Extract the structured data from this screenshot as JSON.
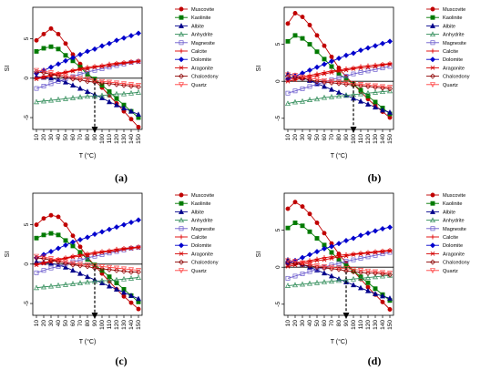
{
  "chart_data": [
    {
      "type": "line",
      "caption": "(a)",
      "xlabel": "T (°C)",
      "ylabel": "SI",
      "x": [
        10,
        20,
        30,
        40,
        50,
        60,
        70,
        80,
        90,
        100,
        110,
        120,
        130,
        140,
        150
      ],
      "xlim": [
        10,
        150
      ],
      "ylim": [
        -6.5,
        9
      ],
      "yticks": [
        -5,
        0,
        5
      ],
      "arrow_x": 90,
      "series": [
        {
          "name": "Muscovite",
          "values": [
            4.8,
            5.6,
            6.3,
            5.6,
            4.4,
            3.0,
            1.8,
            0.6,
            -0.3,
            -1.2,
            -2.2,
            -3.2,
            -4.2,
            -5.2,
            -6.2
          ]
        },
        {
          "name": "Kaolinite",
          "values": [
            3.4,
            3.8,
            4.0,
            3.7,
            2.9,
            2.2,
            1.4,
            0.5,
            -0.1,
            -0.9,
            -1.7,
            -2.6,
            -3.4,
            -4.2,
            -5.0
          ]
        },
        {
          "name": "Albite",
          "values": [
            0.2,
            0.1,
            0.0,
            -0.2,
            -0.5,
            -0.9,
            -1.3,
            -1.7,
            -2.1,
            -2.5,
            -3.0,
            -3.4,
            -3.8,
            -4.2,
            -4.6
          ]
        },
        {
          "name": "Anhydrite",
          "values": [
            -3.0,
            -2.9,
            -2.8,
            -2.7,
            -2.6,
            -2.5,
            -2.4,
            -2.3,
            -2.3,
            -2.2,
            -2.1,
            -2.0,
            -2.0,
            -1.9,
            -1.8
          ]
        },
        {
          "name": "Magnesite",
          "values": [
            -1.3,
            -1.0,
            -0.7,
            -0.4,
            -0.1,
            0.2,
            0.5,
            0.8,
            1.0,
            1.2,
            1.4,
            1.6,
            1.8,
            2.0,
            2.1
          ]
        },
        {
          "name": "Calcite",
          "values": [
            0.0,
            0.2,
            0.4,
            0.6,
            0.8,
            1.0,
            1.2,
            1.4,
            1.5,
            1.6,
            1.8,
            1.9,
            2.0,
            2.1,
            2.2
          ]
        },
        {
          "name": "Dolomite",
          "values": [
            0.6,
            1.0,
            1.4,
            1.8,
            2.2,
            2.6,
            3.0,
            3.4,
            3.7,
            4.1,
            4.4,
            4.8,
            5.1,
            5.4,
            5.7
          ]
        },
        {
          "name": "Aragonite",
          "values": [
            -0.1,
            0.1,
            0.3,
            0.5,
            0.7,
            0.9,
            1.1,
            1.2,
            1.4,
            1.5,
            1.6,
            1.8,
            1.9,
            2.0,
            2.1
          ]
        },
        {
          "name": "Chalcedony",
          "values": [
            0.8,
            0.7,
            0.5,
            0.3,
            0.1,
            -0.1,
            -0.2,
            -0.4,
            -0.5,
            -0.6,
            -0.7,
            -0.8,
            -0.9,
            -1.0,
            -1.1
          ]
        },
        {
          "name": "Quartz",
          "values": [
            1.0,
            0.9,
            0.7,
            0.5,
            0.3,
            0.1,
            0.0,
            -0.1,
            -0.3,
            -0.4,
            -0.5,
            -0.6,
            -0.7,
            -0.8,
            -0.9
          ]
        }
      ]
    },
    {
      "type": "line",
      "caption": "(b)",
      "xlabel": "T (°C)",
      "ylabel": "SI",
      "x": [
        10,
        20,
        30,
        40,
        50,
        60,
        70,
        80,
        90,
        100,
        110,
        120,
        130,
        140,
        150
      ],
      "xlim": [
        10,
        150
      ],
      "ylim": [
        -6.5,
        10
      ],
      "yticks": [
        -5,
        0,
        5
      ],
      "arrow_x": 100,
      "series": [
        {
          "name": "Muscovite",
          "values": [
            7.8,
            9.2,
            8.7,
            7.6,
            6.2,
            4.8,
            3.3,
            1.8,
            0.6,
            -0.4,
            -1.4,
            -2.4,
            -3.3,
            -4.1,
            -4.9
          ]
        },
        {
          "name": "Kaolinite",
          "values": [
            5.4,
            6.2,
            5.8,
            5.0,
            4.0,
            3.0,
            2.0,
            1.0,
            0.3,
            -0.4,
            -1.2,
            -2.0,
            -2.8,
            -3.6,
            -4.4
          ]
        },
        {
          "name": "Albite",
          "values": [
            1.0,
            0.8,
            0.5,
            0.1,
            -0.3,
            -0.7,
            -1.1,
            -1.5,
            -1.9,
            -2.3,
            -2.7,
            -3.1,
            -3.5,
            -3.9,
            -4.2
          ]
        },
        {
          "name": "Anhydrite",
          "values": [
            -3.0,
            -2.8,
            -2.7,
            -2.5,
            -2.4,
            -2.2,
            -2.1,
            -2.0,
            -1.9,
            -1.8,
            -1.7,
            -1.6,
            -1.5,
            -1.4,
            -1.3
          ]
        },
        {
          "name": "Magnesite",
          "values": [
            -1.6,
            -1.3,
            -1.0,
            -0.7,
            -0.4,
            -0.1,
            0.2,
            0.5,
            0.7,
            1.0,
            1.2,
            1.4,
            1.6,
            1.8,
            2.0
          ]
        },
        {
          "name": "Calcite",
          "values": [
            0.2,
            0.4,
            0.6,
            0.8,
            1.0,
            1.2,
            1.4,
            1.5,
            1.7,
            1.8,
            2.0,
            2.1,
            2.2,
            2.3,
            2.4
          ]
        },
        {
          "name": "Dolomite",
          "values": [
            0.3,
            0.7,
            1.1,
            1.5,
            1.9,
            2.3,
            2.7,
            3.1,
            3.5,
            3.8,
            4.2,
            4.5,
            4.8,
            5.1,
            5.4
          ]
        },
        {
          "name": "Aragonite",
          "values": [
            0.0,
            0.2,
            0.4,
            0.6,
            0.8,
            1.0,
            1.2,
            1.4,
            1.5,
            1.7,
            1.8,
            1.9,
            2.0,
            2.2,
            2.3
          ]
        },
        {
          "name": "Chalcedony",
          "values": [
            0.6,
            0.5,
            0.4,
            0.2,
            0.0,
            -0.1,
            -0.2,
            -0.3,
            -0.4,
            -0.5,
            -0.6,
            -0.7,
            -0.8,
            -0.9,
            -1.0
          ]
        },
        {
          "name": "Quartz",
          "values": [
            0.9,
            0.8,
            0.6,
            0.4,
            0.3,
            0.1,
            0.0,
            -0.1,
            -0.2,
            -0.3,
            -0.4,
            -0.5,
            -0.6,
            -0.7,
            -0.8
          ]
        }
      ]
    },
    {
      "type": "line",
      "caption": "(c)",
      "xlabel": "T (°C)",
      "ylabel": "SI",
      "x": [
        10,
        20,
        30,
        40,
        50,
        60,
        70,
        80,
        90,
        100,
        110,
        120,
        130,
        140,
        150
      ],
      "xlim": [
        10,
        150
      ],
      "ylim": [
        -6.5,
        9
      ],
      "yticks": [
        -5,
        0,
        5
      ],
      "arrow_x": 90,
      "series": [
        {
          "name": "Muscovite",
          "values": [
            5.0,
            5.8,
            6.2,
            6.0,
            5.0,
            3.6,
            2.2,
            0.9,
            -0.2,
            -1.2,
            -2.2,
            -3.2,
            -4.1,
            -4.9,
            -5.7
          ]
        },
        {
          "name": "Kaolinite",
          "values": [
            3.3,
            3.7,
            3.9,
            3.7,
            3.0,
            2.3,
            1.5,
            0.6,
            -0.1,
            -0.8,
            -1.6,
            -2.4,
            -3.2,
            -4.0,
            -4.8
          ]
        },
        {
          "name": "Albite",
          "values": [
            0.3,
            0.2,
            0.1,
            -0.1,
            -0.4,
            -0.8,
            -1.2,
            -1.6,
            -2.0,
            -2.4,
            -2.8,
            -3.2,
            -3.6,
            -4.0,
            -4.4
          ]
        },
        {
          "name": "Anhydrite",
          "values": [
            -3.0,
            -2.9,
            -2.8,
            -2.7,
            -2.6,
            -2.5,
            -2.4,
            -2.3,
            -2.2,
            -2.1,
            -2.1,
            -2.0,
            -1.9,
            -1.8,
            -1.7
          ]
        },
        {
          "name": "Magnesite",
          "values": [
            -1.1,
            -0.8,
            -0.5,
            -0.3,
            0.0,
            0.3,
            0.5,
            0.8,
            1.0,
            1.2,
            1.4,
            1.6,
            1.8,
            2.0,
            2.1
          ]
        },
        {
          "name": "Calcite",
          "values": [
            0.0,
            0.2,
            0.4,
            0.6,
            0.8,
            1.0,
            1.2,
            1.3,
            1.5,
            1.6,
            1.7,
            1.9,
            2.0,
            2.1,
            2.2
          ]
        },
        {
          "name": "Dolomite",
          "values": [
            0.8,
            1.2,
            1.6,
            2.0,
            2.4,
            2.8,
            3.1,
            3.4,
            3.8,
            4.1,
            4.4,
            4.7,
            5.0,
            5.3,
            5.6
          ]
        },
        {
          "name": "Aragonite",
          "values": [
            -0.1,
            0.1,
            0.3,
            0.5,
            0.7,
            0.9,
            1.0,
            1.2,
            1.3,
            1.5,
            1.6,
            1.7,
            1.9,
            2.0,
            2.1
          ]
        },
        {
          "name": "Chalcedony",
          "values": [
            0.8,
            0.7,
            0.5,
            0.3,
            0.1,
            -0.1,
            -0.2,
            -0.3,
            -0.5,
            -0.6,
            -0.7,
            -0.8,
            -0.9,
            -1.0,
            -1.0
          ]
        },
        {
          "name": "Quartz",
          "values": [
            1.0,
            0.9,
            0.7,
            0.5,
            0.3,
            0.1,
            0.0,
            -0.1,
            -0.2,
            -0.3,
            -0.4,
            -0.5,
            -0.6,
            -0.7,
            -0.8
          ]
        }
      ]
    },
    {
      "type": "line",
      "caption": "(d)",
      "xlabel": "T (°C)",
      "ylabel": "SI",
      "x": [
        10,
        20,
        30,
        40,
        50,
        60,
        70,
        80,
        90,
        100,
        110,
        120,
        130,
        140,
        150
      ],
      "xlim": [
        10,
        150
      ],
      "ylim": [
        -6.5,
        10
      ],
      "yticks": [
        -5,
        0,
        5
      ],
      "arrow_x": 90,
      "series": [
        {
          "name": "Muscovite",
          "values": [
            7.9,
            8.8,
            8.2,
            7.2,
            6.0,
            4.6,
            3.2,
            1.8,
            0.6,
            -0.5,
            -1.6,
            -2.7,
            -3.7,
            -4.7,
            -5.7
          ]
        },
        {
          "name": "Kaolinite",
          "values": [
            5.3,
            6.0,
            5.6,
            4.8,
            3.9,
            3.0,
            2.0,
            1.0,
            0.2,
            -0.5,
            -1.3,
            -2.1,
            -2.9,
            -3.7,
            -4.5
          ]
        },
        {
          "name": "Albite",
          "values": [
            1.0,
            0.7,
            0.4,
            0.0,
            -0.4,
            -0.8,
            -1.2,
            -1.6,
            -2.0,
            -2.4,
            -2.8,
            -3.2,
            -3.6,
            -3.9,
            -4.2
          ]
        },
        {
          "name": "Anhydrite",
          "values": [
            -2.5,
            -2.4,
            -2.3,
            -2.2,
            -2.1,
            -2.0,
            -1.9,
            -1.8,
            -1.7,
            -1.6,
            -1.5,
            -1.4,
            -1.3,
            -1.2,
            -1.1
          ]
        },
        {
          "name": "Magnesite",
          "values": [
            -1.5,
            -1.2,
            -0.9,
            -0.6,
            -0.3,
            0.0,
            0.3,
            0.5,
            0.8,
            1.0,
            1.2,
            1.4,
            1.6,
            1.8,
            2.0
          ]
        },
        {
          "name": "Calcite",
          "values": [
            0.3,
            0.5,
            0.7,
            0.9,
            1.1,
            1.3,
            1.4,
            1.6,
            1.7,
            1.8,
            1.9,
            2.0,
            2.1,
            2.2,
            2.3
          ]
        },
        {
          "name": "Dolomite",
          "values": [
            0.5,
            0.9,
            1.3,
            1.7,
            2.1,
            2.5,
            2.8,
            3.2,
            3.6,
            3.9,
            4.3,
            4.6,
            4.9,
            5.2,
            5.4
          ]
        },
        {
          "name": "Aragonite",
          "values": [
            0.1,
            0.3,
            0.5,
            0.7,
            0.9,
            1.0,
            1.2,
            1.4,
            1.5,
            1.7,
            1.8,
            1.9,
            2.0,
            2.1,
            2.2
          ]
        },
        {
          "name": "Chalcedony",
          "values": [
            0.6,
            0.5,
            0.3,
            0.2,
            0.0,
            -0.1,
            -0.2,
            -0.3,
            -0.5,
            -0.6,
            -0.7,
            -0.8,
            -0.8,
            -0.9,
            -1.0
          ]
        },
        {
          "name": "Quartz",
          "values": [
            0.9,
            0.8,
            0.6,
            0.4,
            0.2,
            0.1,
            0.0,
            -0.1,
            -0.2,
            -0.3,
            -0.4,
            -0.5,
            -0.6,
            -0.7,
            -0.8
          ]
        }
      ]
    }
  ],
  "series_style": [
    {
      "color": "#c00000",
      "marker": "circle",
      "filled": true
    },
    {
      "color": "#007a00",
      "marker": "square",
      "filled": true
    },
    {
      "color": "#00008b",
      "marker": "triangle",
      "filled": true
    },
    {
      "color": "#2e8b57",
      "marker": "triangle",
      "filled": false
    },
    {
      "color": "#6a5acd",
      "marker": "square",
      "filled": false
    },
    {
      "color": "#e00000",
      "marker": "plus",
      "filled": false
    },
    {
      "color": "#0000cd",
      "marker": "diamond",
      "filled": true
    },
    {
      "color": "#d40000",
      "marker": "star",
      "filled": false
    },
    {
      "color": "#8b0000",
      "marker": "diamond",
      "filled": false
    },
    {
      "color": "#ff4040",
      "marker": "triangle-down",
      "filled": false
    }
  ]
}
